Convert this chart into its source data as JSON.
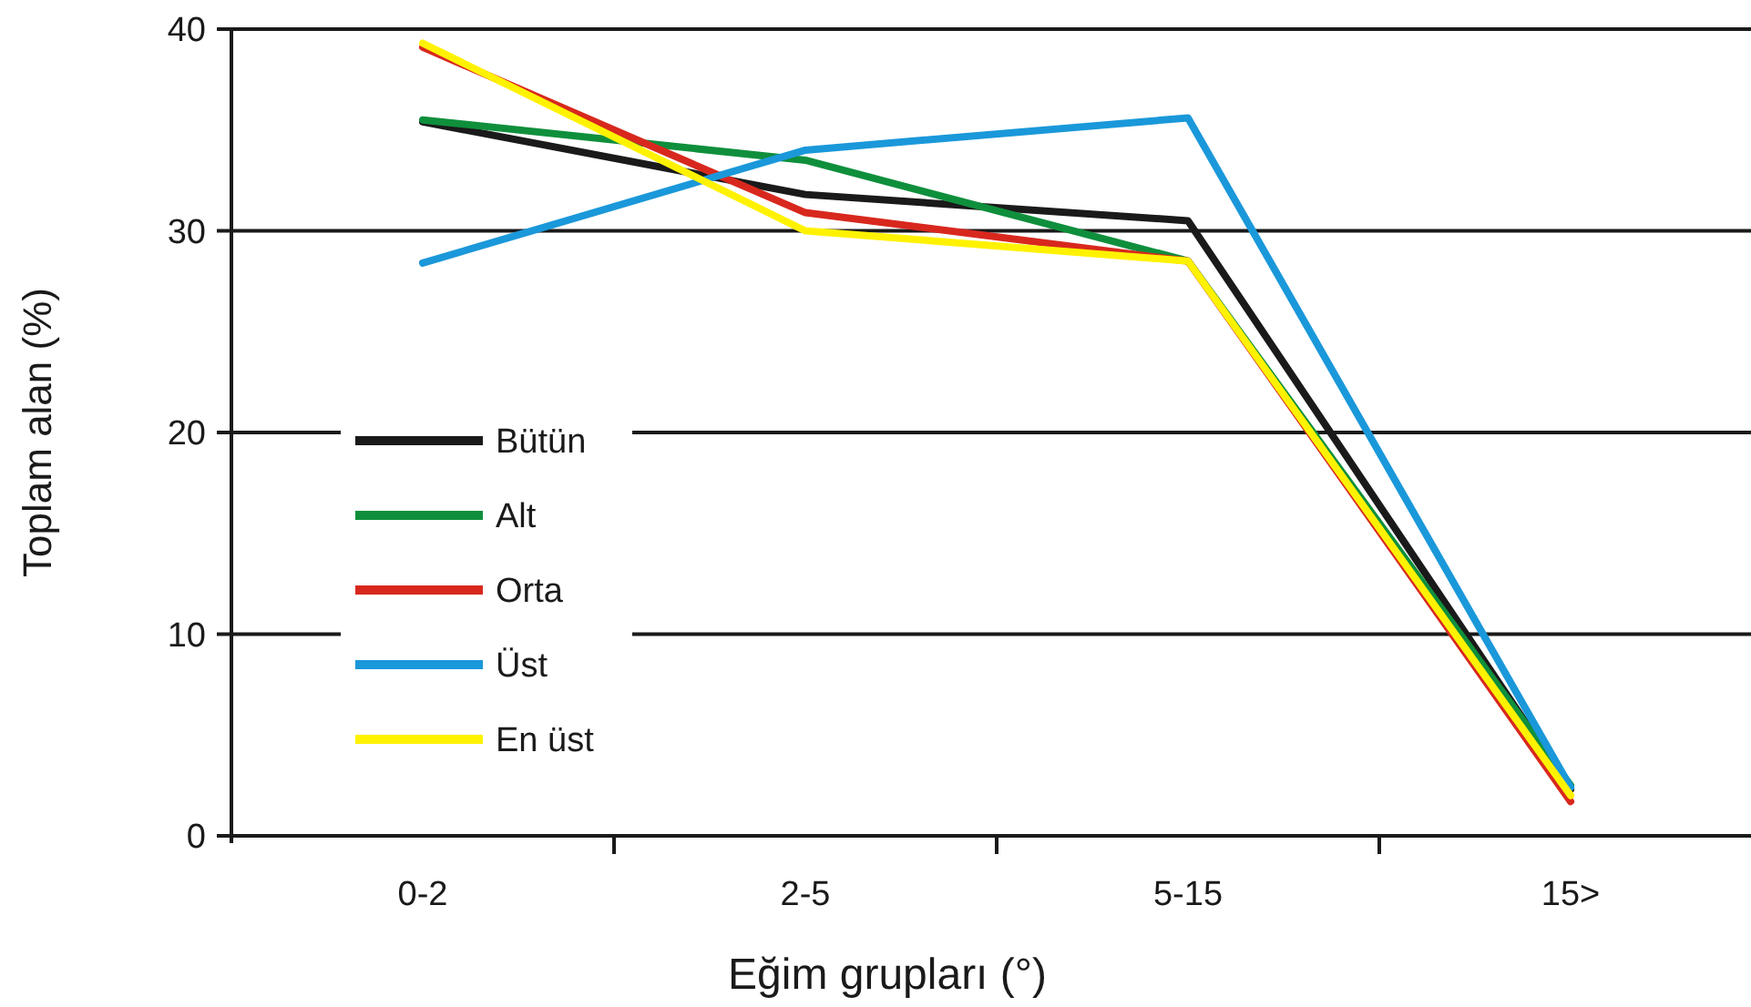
{
  "chart_data": {
    "type": "line",
    "xlabel": "Eğim grupları (°)",
    "ylabel": "Toplam alan (%)",
    "categories": [
      "0-2",
      "2-5",
      "5-15",
      "15>"
    ],
    "series": [
      {
        "name": "Bütün",
        "color": "#1a1a1a",
        "values": [
          35.4,
          31.8,
          30.5,
          2.3
        ]
      },
      {
        "name": "Alt",
        "color": "#0f8f3c",
        "values": [
          35.5,
          33.5,
          28.5,
          2.5
        ]
      },
      {
        "name": "Orta",
        "color": "#d8281e",
        "values": [
          39.1,
          30.9,
          28.5,
          1.7
        ]
      },
      {
        "name": "Üst",
        "color": "#1a98da",
        "values": [
          28.4,
          34.0,
          35.6,
          2.4
        ]
      },
      {
        "name": "En üst",
        "color": "#fff200",
        "values": [
          39.3,
          30.0,
          28.5,
          2.0
        ]
      }
    ],
    "ylim": [
      0,
      40
    ],
    "yticks": [
      0,
      10,
      20,
      30,
      40
    ],
    "grid": "y",
    "legend": "left",
    "marker": "none",
    "line_style": "solid"
  }
}
